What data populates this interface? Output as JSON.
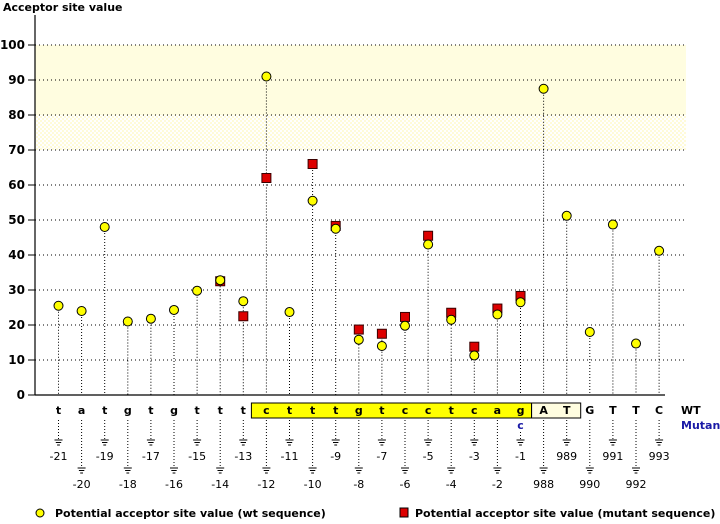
{
  "chart_data": {
    "type": "scatter",
    "title": "Acceptor site value",
    "ylabel": "Acceptor site value",
    "ylim": [
      0,
      100
    ],
    "yticks": [
      0,
      10,
      20,
      30,
      40,
      50,
      60,
      70,
      80,
      90,
      100
    ],
    "grid": true,
    "highlight_bands": [
      {
        "from": 80,
        "to": 100,
        "style": "solid",
        "color": "#fffde0"
      },
      {
        "from": 70,
        "to": 80,
        "style": "hatched",
        "color": "#fffde0"
      }
    ],
    "positions": [
      {
        "base": "t",
        "mutant": "",
        "pos": "-21",
        "wt": 25.5,
        "mt": null,
        "box": ""
      },
      {
        "base": "a",
        "mutant": "",
        "pos": "-20",
        "wt": 24.0,
        "mt": null,
        "box": ""
      },
      {
        "base": "t",
        "mutant": "",
        "pos": "-19",
        "wt": 48.0,
        "mt": null,
        "box": ""
      },
      {
        "base": "g",
        "mutant": "",
        "pos": "-18",
        "wt": 21.0,
        "mt": null,
        "box": ""
      },
      {
        "base": "t",
        "mutant": "",
        "pos": "-17",
        "wt": 21.8,
        "mt": null,
        "box": ""
      },
      {
        "base": "g",
        "mutant": "",
        "pos": "-16",
        "wt": 24.3,
        "mt": null,
        "box": ""
      },
      {
        "base": "t",
        "mutant": "",
        "pos": "-15",
        "wt": 29.8,
        "mt": null,
        "box": ""
      },
      {
        "base": "t",
        "mutant": "",
        "pos": "-14",
        "wt": 32.8,
        "mt": 32.5,
        "box": ""
      },
      {
        "base": "t",
        "mutant": "",
        "pos": "-13",
        "wt": 26.8,
        "mt": 22.5,
        "box": ""
      },
      {
        "base": "c",
        "mutant": "",
        "pos": "-12",
        "wt": 91.0,
        "mt": 62.0,
        "box": "yellow"
      },
      {
        "base": "t",
        "mutant": "",
        "pos": "-11",
        "wt": 23.7,
        "mt": null,
        "box": "yellow"
      },
      {
        "base": "t",
        "mutant": "",
        "pos": "-10",
        "wt": 55.5,
        "mt": 66.0,
        "box": "yellow"
      },
      {
        "base": "t",
        "mutant": "",
        "pos": "-9",
        "wt": 47.5,
        "mt": 48.3,
        "box": "yellow"
      },
      {
        "base": "g",
        "mutant": "",
        "pos": "-8",
        "wt": 15.8,
        "mt": 18.7,
        "box": "yellow"
      },
      {
        "base": "t",
        "mutant": "",
        "pos": "-7",
        "wt": 14.0,
        "mt": 17.5,
        "box": "yellow"
      },
      {
        "base": "c",
        "mutant": "",
        "pos": "-6",
        "wt": 19.8,
        "mt": 22.3,
        "box": "yellow"
      },
      {
        "base": "c",
        "mutant": "",
        "pos": "-5",
        "wt": 43.0,
        "mt": 45.5,
        "box": "yellow"
      },
      {
        "base": "t",
        "mutant": "",
        "pos": "-4",
        "wt": 21.5,
        "mt": 23.5,
        "box": "yellow"
      },
      {
        "base": "c",
        "mutant": "",
        "pos": "-3",
        "wt": 11.3,
        "mt": 13.8,
        "box": "yellow"
      },
      {
        "base": "a",
        "mutant": "",
        "pos": "-2",
        "wt": 23.0,
        "mt": 24.7,
        "box": "yellow"
      },
      {
        "base": "g",
        "mutant": "c",
        "pos": "-1",
        "wt": 26.5,
        "mt": 28.3,
        "box": "yellow"
      },
      {
        "base": "A",
        "mutant": "",
        "pos": "988",
        "wt": 87.5,
        "mt": null,
        "box": "pale"
      },
      {
        "base": "T",
        "mutant": "",
        "pos": "989",
        "wt": 51.2,
        "mt": null,
        "box": "pale"
      },
      {
        "base": "G",
        "mutant": "",
        "pos": "990",
        "wt": 18.0,
        "mt": null,
        "box": ""
      },
      {
        "base": "T",
        "mutant": "",
        "pos": "991",
        "wt": 48.7,
        "mt": null,
        "box": ""
      },
      {
        "base": "T",
        "mutant": "",
        "pos": "992",
        "wt": 14.7,
        "mt": null,
        "box": ""
      },
      {
        "base": "C",
        "mutant": "",
        "pos": "993",
        "wt": 41.2,
        "mt": null,
        "box": ""
      }
    ],
    "row_labels": {
      "wt": "WT",
      "mutant": "Mutant"
    },
    "legend": [
      {
        "label": "Potential acceptor site value (wt sequence)",
        "marker": "circle",
        "color": "#ffff00"
      },
      {
        "label": "Potential acceptor site value (mutant sequence)",
        "marker": "square",
        "color": "#dd0000"
      }
    ]
  },
  "colors": {
    "wt": "#ffff00",
    "mutant": "#dd0000",
    "exon_box": "#ffff00",
    "pale_box": "#fffde0",
    "mutant_text": "#1a1aa6"
  }
}
